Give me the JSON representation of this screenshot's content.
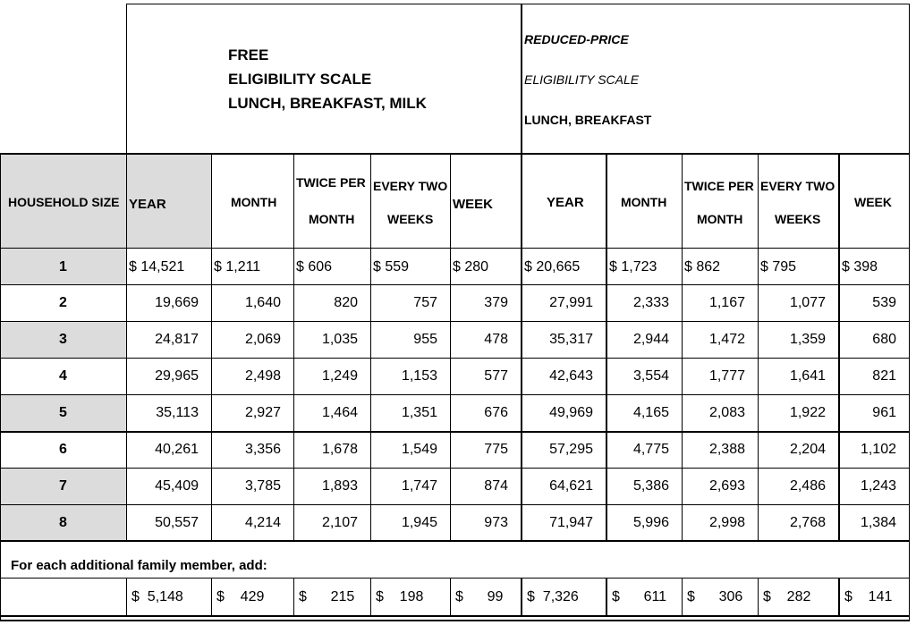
{
  "free_header": {
    "line1": "FREE",
    "line2": "ELIGIBILITY SCALE",
    "line3": "LUNCH, BREAKFAST, MILK"
  },
  "reduced_header": {
    "line1": "REDUCED-PRICE",
    "line2": "ELIGIBILITY SCALE",
    "line3": "LUNCH, BREAKFAST"
  },
  "columns": {
    "household_size": "HOUSEHOLD SIZE",
    "year": "YEAR",
    "month": "MONTH",
    "twice_a": "TWICE PER",
    "twice_b": "MONTH",
    "every_a": "EVERY TWO",
    "every_b": "WEEKS",
    "week": "WEEK"
  },
  "rows": [
    {
      "size": "1",
      "free": [
        "$ 14,521",
        "$ 1,211",
        "$   606",
        "$  559",
        "$  280"
      ],
      "reduced": [
        "$ 20,665",
        "$ 1,723",
        "$   862",
        "$   795",
        "$  398"
      ]
    },
    {
      "size": "2",
      "free": [
        "19,669",
        "1,640",
        "820",
        "757",
        "379"
      ],
      "reduced": [
        "27,991",
        "2,333",
        "1,167",
        "1,077",
        "539"
      ]
    },
    {
      "size": "3",
      "free": [
        "24,817",
        "2,069",
        "1,035",
        "955",
        "478"
      ],
      "reduced": [
        "35,317",
        "2,944",
        "1,472",
        "1,359",
        "680"
      ]
    },
    {
      "size": "4",
      "free": [
        "29,965",
        "2,498",
        "1,249",
        "1,153",
        "577"
      ],
      "reduced": [
        "42,643",
        "3,554",
        "1,777",
        "1,641",
        "821"
      ]
    },
    {
      "size": "5",
      "free": [
        "35,113",
        "2,927",
        "1,464",
        "1,351",
        "676"
      ],
      "reduced": [
        "49,969",
        "4,165",
        "2,083",
        "1,922",
        "961"
      ]
    },
    {
      "size": "6",
      "free": [
        "40,261",
        "3,356",
        "1,678",
        "1,549",
        "775"
      ],
      "reduced": [
        "57,295",
        "4,775",
        "2,388",
        "2,204",
        "1,102"
      ]
    },
    {
      "size": "7",
      "free": [
        "45,409",
        "3,785",
        "1,893",
        "1,747",
        "874"
      ],
      "reduced": [
        "64,621",
        "5,386",
        "2,693",
        "2,486",
        "1,243"
      ]
    },
    {
      "size": "8",
      "free": [
        "50,557",
        "4,214",
        "2,107",
        "1,945",
        "973"
      ],
      "reduced": [
        "71,947",
        "5,996",
        "2,998",
        "2,768",
        "1,384"
      ]
    }
  ],
  "additional": {
    "label": "For each additional family member, add:",
    "free": [
      "$  5,148",
      "$    429",
      "$      215",
      "$    198",
      "$      99"
    ],
    "reduced": [
      "$  7,326",
      "$      611",
      "$      306",
      "$    282",
      "$    141"
    ]
  }
}
